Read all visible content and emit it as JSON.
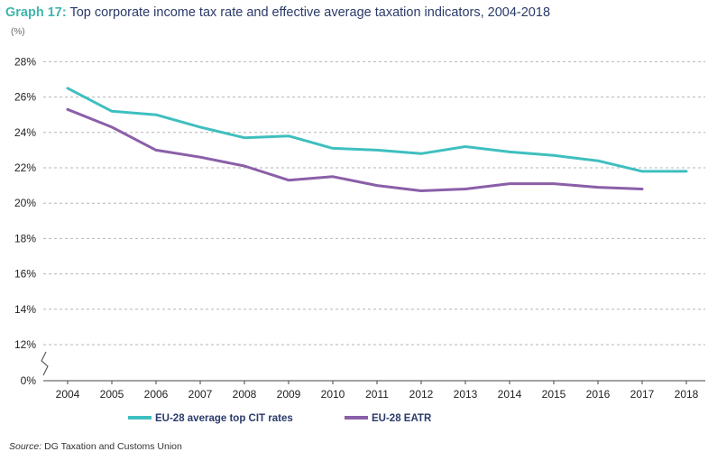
{
  "title": {
    "prefix": "Graph 17:",
    "text": "Top corporate income tax rate and effective average taxation indicators, 2004-2018"
  },
  "unit_label": "(%)",
  "source": {
    "label": "Source:",
    "text": "DG Taxation and Customs Union"
  },
  "chart_data": {
    "type": "line",
    "x": [
      "2004",
      "2005",
      "2006",
      "2007",
      "2008",
      "2009",
      "2010",
      "2011",
      "2012",
      "2013",
      "2014",
      "2015",
      "2016",
      "2017",
      "2018"
    ],
    "y_ticks": [
      "0%",
      "12%",
      "14%",
      "16%",
      "18%",
      "20%",
      "22%",
      "24%",
      "26%",
      "28%"
    ],
    "y_axis_break": true,
    "ylim": [
      0,
      28
    ],
    "grid": "horizontal dashed",
    "legend_position": "bottom",
    "series": [
      {
        "name": "EU-28 average top CIT rates",
        "color": "#3fbfbf",
        "values": [
          26.5,
          25.2,
          25.0,
          24.3,
          23.7,
          23.8,
          23.1,
          23.0,
          22.8,
          23.2,
          22.9,
          22.7,
          22.4,
          21.8,
          21.8
        ]
      },
      {
        "name": "EU-28 EATR",
        "color": "#8a5fa8",
        "values": [
          25.3,
          24.3,
          23.0,
          22.6,
          22.1,
          21.3,
          21.5,
          21.0,
          20.7,
          20.8,
          21.1,
          21.1,
          20.9,
          20.8,
          null
        ]
      }
    ]
  }
}
